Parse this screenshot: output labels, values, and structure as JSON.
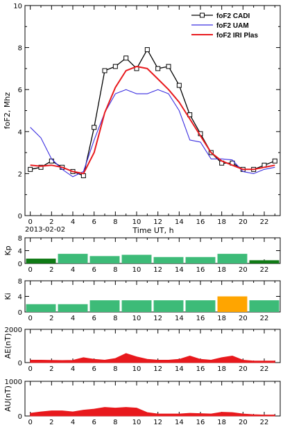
{
  "chart_data": [
    {
      "type": "line",
      "ylabel": "foF2, Mhz",
      "xlabel": "Time UT, h",
      "date_label": "2013-02-02",
      "xlim": [
        -0.5,
        23.5
      ],
      "ylim": [
        0,
        10
      ],
      "x_ticks": [
        0,
        2,
        4,
        6,
        8,
        10,
        12,
        14,
        16,
        18,
        20,
        22
      ],
      "y_ticks": [
        0,
        2,
        4,
        6,
        8,
        10
      ],
      "legend_position": "top-right",
      "series": [
        {
          "name": "foF2 CADI",
          "color": "#000000",
          "marker": "square",
          "x": [
            0,
            1,
            2,
            3,
            4,
            5,
            6,
            7,
            8,
            9,
            10,
            11,
            12,
            13,
            14,
            15,
            16,
            17,
            18,
            19,
            20,
            21,
            22,
            23
          ],
          "y": [
            2.2,
            2.3,
            2.6,
            2.3,
            2.1,
            1.9,
            4.2,
            6.9,
            7.1,
            7.5,
            7.0,
            7.9,
            7.0,
            7.1,
            6.2,
            4.8,
            3.9,
            3.0,
            2.5,
            2.5,
            2.2,
            2.2,
            2.4,
            2.6
          ]
        },
        {
          "name": "foF2 UAM",
          "color": "#3b2fe0",
          "x": [
            0,
            1,
            2,
            3,
            4,
            5,
            6,
            7,
            8,
            9,
            10,
            11,
            12,
            13,
            14,
            15,
            16,
            17,
            18,
            19,
            20,
            21,
            22,
            23
          ],
          "y": [
            4.2,
            3.7,
            2.7,
            2.2,
            1.85,
            2.1,
            3.6,
            4.9,
            5.8,
            6.0,
            5.8,
            5.8,
            6.0,
            5.8,
            5.0,
            3.6,
            3.5,
            2.7,
            2.7,
            2.65,
            2.1,
            2.0,
            2.2,
            2.3
          ]
        },
        {
          "name": "foF2 IRI Plas",
          "color": "#e8191d",
          "x": [
            0,
            1,
            2,
            3,
            4,
            5,
            6,
            7,
            8,
            9,
            10,
            11,
            12,
            13,
            14,
            15,
            16,
            17,
            18,
            19,
            20,
            21,
            22,
            23
          ],
          "y": [
            2.4,
            2.35,
            2.4,
            2.3,
            2.1,
            2.0,
            3.0,
            4.9,
            6.1,
            6.9,
            7.1,
            7.0,
            6.5,
            6.0,
            5.4,
            4.6,
            3.8,
            3.0,
            2.6,
            2.4,
            2.2,
            2.2,
            2.3,
            2.4
          ]
        }
      ]
    },
    {
      "type": "bar",
      "ylabel": "Kp",
      "xlim": [
        -0.5,
        23.5
      ],
      "ylim": [
        0,
        8
      ],
      "x_ticks": [
        0,
        2,
        4,
        6,
        8,
        10,
        12,
        14,
        16,
        18,
        20,
        22
      ],
      "y_ticks": [
        0,
        4,
        8
      ],
      "bars": [
        {
          "start": 0,
          "end": 2,
          "value": 1.5,
          "color": "#0f7a15"
        },
        {
          "start": 3,
          "end": 5,
          "value": 3,
          "color": "#3dbb78"
        },
        {
          "start": 6,
          "end": 8,
          "value": 2.3,
          "color": "#3dbb78"
        },
        {
          "start": 9,
          "end": 11,
          "value": 2.7,
          "color": "#3dbb78"
        },
        {
          "start": 12,
          "end": 14,
          "value": 2,
          "color": "#3dbb78"
        },
        {
          "start": 15,
          "end": 17,
          "value": 2,
          "color": "#3dbb78"
        },
        {
          "start": 18,
          "end": 20,
          "value": 3,
          "color": "#3dbb78"
        },
        {
          "start": 21,
          "end": 23,
          "value": 1,
          "color": "#0f7a15"
        }
      ]
    },
    {
      "type": "bar",
      "ylabel": "Ki",
      "xlim": [
        -0.5,
        23.5
      ],
      "ylim": [
        0,
        8
      ],
      "x_ticks": [
        0,
        2,
        4,
        6,
        8,
        10,
        12,
        14,
        16,
        18,
        20,
        22
      ],
      "y_ticks": [
        0,
        4,
        8
      ],
      "bars": [
        {
          "start": 0,
          "end": 2,
          "value": 2,
          "color": "#3dbb78"
        },
        {
          "start": 3,
          "end": 5,
          "value": 2,
          "color": "#3dbb78"
        },
        {
          "start": 6,
          "end": 8,
          "value": 3,
          "color": "#3dbb78"
        },
        {
          "start": 9,
          "end": 11,
          "value": 3,
          "color": "#3dbb78"
        },
        {
          "start": 12,
          "end": 14,
          "value": 3,
          "color": "#3dbb78"
        },
        {
          "start": 15,
          "end": 17,
          "value": 3,
          "color": "#3dbb78"
        },
        {
          "start": 18,
          "end": 20,
          "value": 4,
          "color": "#ffa500"
        },
        {
          "start": 21,
          "end": 23,
          "value": 3,
          "color": "#3dbb78"
        }
      ]
    },
    {
      "type": "area",
      "ylabel": "AE(nT)",
      "xlim": [
        -0.5,
        23.5
      ],
      "ylim": [
        0,
        2000
      ],
      "x_ticks": [
        0,
        2,
        4,
        6,
        8,
        10,
        12,
        14,
        16,
        18,
        20,
        22
      ],
      "y_ticks": [
        0,
        2000
      ],
      "color": "#e8191d",
      "x": [
        0,
        1,
        2,
        3,
        4,
        5,
        6,
        7,
        8,
        9,
        10,
        11,
        12,
        13,
        14,
        15,
        16,
        17,
        18,
        19,
        20,
        21,
        22,
        23
      ],
      "y": [
        150,
        150,
        140,
        130,
        140,
        300,
        200,
        150,
        250,
        550,
        350,
        200,
        150,
        150,
        200,
        400,
        200,
        150,
        300,
        400,
        150,
        100,
        100,
        100
      ]
    },
    {
      "type": "area",
      "ylabel": "AU(nT)",
      "xlim": [
        -0.5,
        23.5
      ],
      "ylim": [
        0,
        1000
      ],
      "x_ticks": [
        0,
        2,
        4,
        6,
        8,
        10,
        12,
        14,
        16,
        18,
        20,
        22
      ],
      "y_ticks": [
        0,
        1000
      ],
      "color": "#e8191d",
      "x": [
        0,
        1,
        2,
        3,
        4,
        5,
        6,
        7,
        8,
        9,
        10,
        11,
        12,
        13,
        14,
        15,
        16,
        17,
        18,
        19,
        20,
        21,
        22,
        23
      ],
      "y": [
        80,
        120,
        150,
        150,
        120,
        170,
        200,
        250,
        230,
        250,
        230,
        100,
        60,
        60,
        60,
        80,
        70,
        60,
        110,
        100,
        60,
        40,
        30,
        30
      ]
    }
  ]
}
